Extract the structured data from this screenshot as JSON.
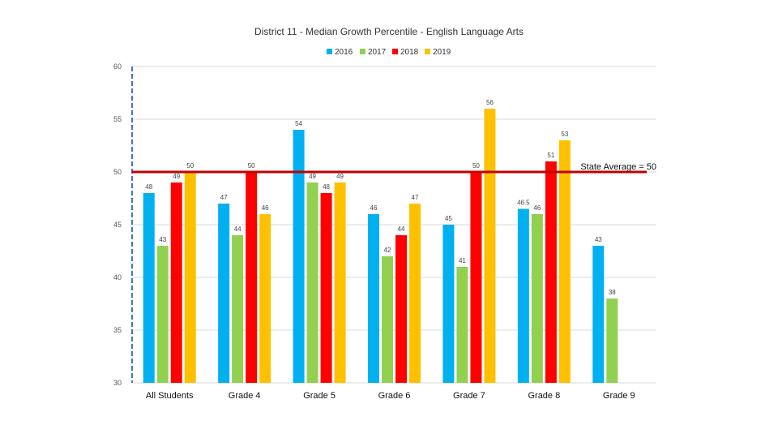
{
  "chart_data": {
    "type": "bar",
    "title": "District 11 -  Median Growth Percentile -  English Language Arts",
    "xlabel": "",
    "ylabel": "",
    "ylim": [
      30,
      60
    ],
    "yticks": [
      30,
      35,
      40,
      45,
      50,
      55,
      60
    ],
    "grid": true,
    "legend_position": "top-center",
    "categories": [
      "All Students",
      "Grade 4",
      "Grade 5",
      "Grade 6",
      "Grade 7",
      "Grade 8",
      "Grade 9"
    ],
    "series": [
      {
        "name": "2016",
        "color": "#00b0f0",
        "values": [
          48,
          47,
          54,
          46,
          45,
          46.5,
          43
        ],
        "labels": [
          "48",
          "47",
          "54",
          "46",
          "45",
          "46.5",
          "43"
        ]
      },
      {
        "name": "2017",
        "color": "#92d050",
        "values": [
          43,
          44,
          49,
          42,
          41,
          46,
          38
        ],
        "labels": [
          "43",
          "44",
          "49",
          "42",
          "41",
          "46",
          "38"
        ]
      },
      {
        "name": "2018",
        "color": "#ff0000",
        "values": [
          49,
          50,
          48,
          44,
          50,
          51,
          null
        ],
        "labels": [
          "49",
          "50",
          "48",
          "44",
          "50",
          "51",
          ""
        ]
      },
      {
        "name": "2019",
        "color": "#ffc000",
        "values": [
          50,
          46,
          49,
          47,
          56,
          53,
          null
        ],
        "labels": [
          "50",
          "46",
          "49",
          "47",
          "56",
          "53",
          ""
        ]
      }
    ],
    "reference_line": {
      "value": 50,
      "label": "State Average = 50",
      "color": "#c00000"
    }
  }
}
